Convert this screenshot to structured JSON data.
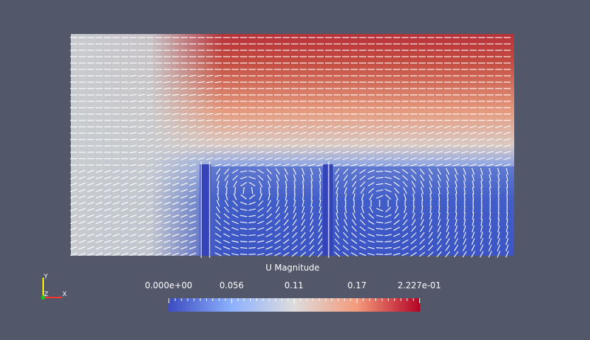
{
  "colorbar": {
    "title": "U Magnitude",
    "labels": [
      "0.000e+00",
      "0.056",
      "0.11",
      "0.17",
      "2.227e-01"
    ],
    "min": 0.0,
    "max": 0.2227,
    "colormap": [
      "#3b4cc0",
      "#8db0fe",
      "#dddcdc",
      "#f49a7b",
      "#b40426"
    ]
  },
  "axes_triad": {
    "x": "X",
    "y": "Y",
    "z": "Z"
  },
  "colors": {
    "background": "#525769",
    "text": "#ffffff",
    "glyphs": "#ffffff"
  }
}
